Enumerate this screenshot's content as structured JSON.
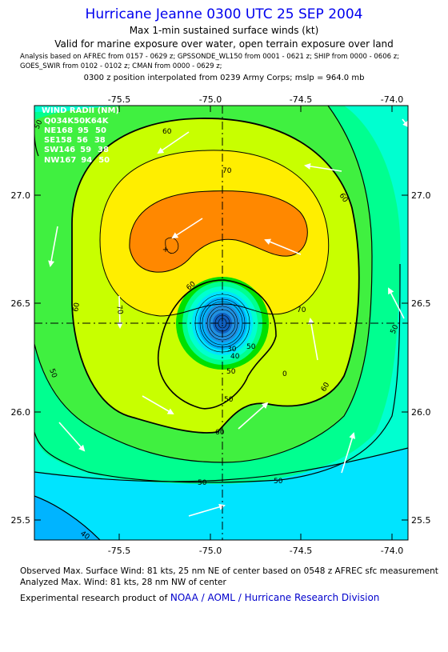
{
  "header": {
    "title": "Hurricane Jeanne 0300 UTC 25 SEP 2004",
    "subtitle1": "Max 1-min sustained surface winds (kt)",
    "subtitle2": "Valid for marine exposure over water, open terrain exposure over land",
    "analysis_line1": "Analysis based on  AFREC from 0157 - 0629 z;  GPSSONDE_WL150 from 0001 - 0621 z;  SHIP from 0000 - 0606 z;",
    "analysis_line2": "GOES_SWIR from 0102 - 0102 z;  CMAN from 0000 - 0629 z;",
    "position_line": "0300 z position interpolated from 0239 Army Corps; mslp = 964.0 mb"
  },
  "wind_radii": {
    "title": "WIND RADII (NM)",
    "header": "Q034K50K64K",
    "rows": [
      {
        "quad": "NE",
        "r34": 168,
        "r50": 95,
        "r64": 50
      },
      {
        "quad": "SE",
        "r34": 158,
        "r50": 56,
        "r64": 38
      },
      {
        "quad": "SW",
        "r34": 146,
        "r50": 59,
        "r64": 38
      },
      {
        "quad": "NW",
        "r34": 167,
        "r50": 94,
        "r64": 50
      }
    ]
  },
  "axes": {
    "lon_ticks": [
      "-75.5",
      "-75.0",
      "-74.5",
      "-74.0"
    ],
    "lat_ticks": [
      "27.0",
      "26.5",
      "26.0",
      "25.5"
    ],
    "lon_range": [
      -75.85,
      -74.05
    ],
    "lat_range": [
      25.4,
      27.45
    ]
  },
  "center": {
    "lon": -74.93,
    "lat": 26.4
  },
  "contour_labels": [
    "40",
    "50",
    "50",
    "50",
    "60",
    "60",
    "60",
    "60",
    "60",
    "60",
    "70",
    "70",
    "70",
    "30",
    "40",
    "50",
    "50",
    "50",
    "0",
    "50",
    "50"
  ],
  "colors": {
    "lt30": "#00b4ff",
    "c30_40": "#00e4ff",
    "c40_50": "#00ffd0",
    "c50_60": "#00ff90",
    "c60_70": "#40f040",
    "c70_80": "#c8ff00",
    "c80_90": "#ffee00",
    "c90plus": "#ff8800",
    "core": "#2090e0",
    "title_blue": "#0000ee"
  },
  "footer": {
    "observed": "Observed Max. Surface Wind: 81 kts, 25 nm NE of center based on 0548 z AFREC sfc measurement",
    "analyzed": "Analyzed Max. Wind: 81 kts, 28 nm NW of center",
    "credit_prefix": "Experimental research product of",
    "credit_org": "NOAA / AOML / Hurricane Research Division"
  }
}
